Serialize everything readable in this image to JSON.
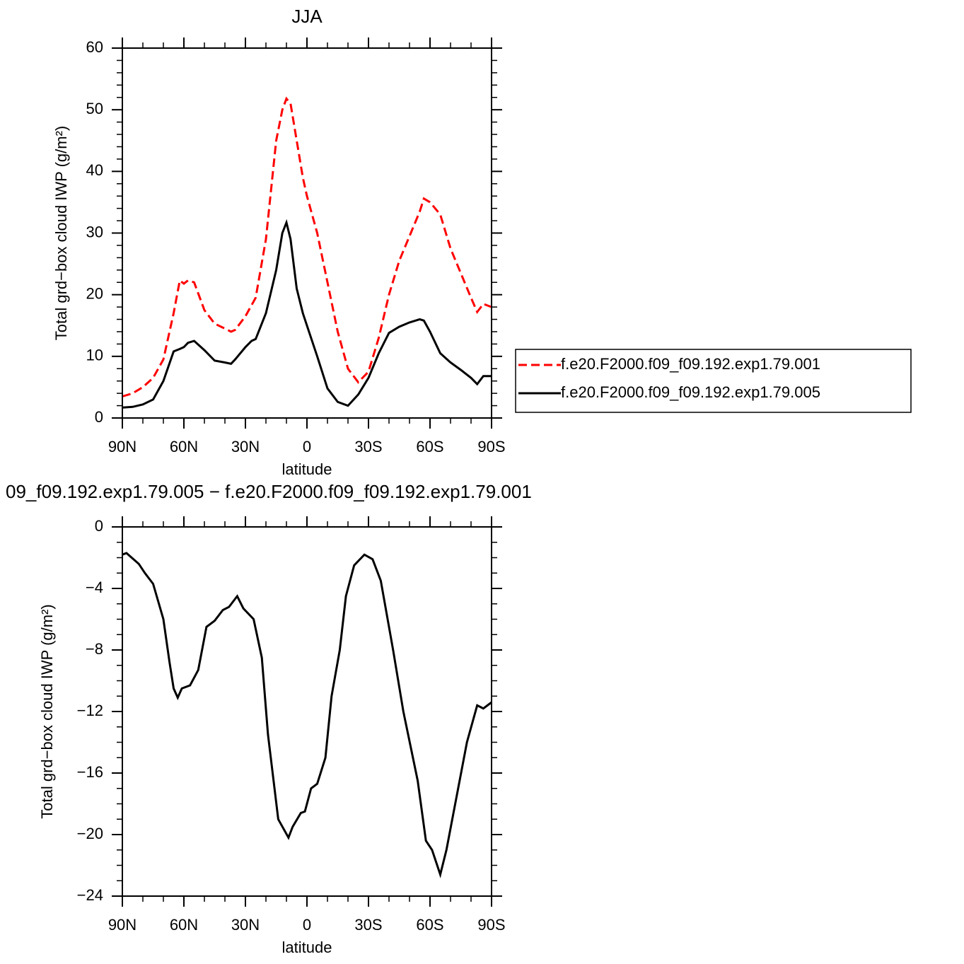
{
  "chart_data": [
    {
      "type": "line",
      "title": "JJA",
      "xlabel": "latitude",
      "ylabel": "Total grd−box cloud IWP (g/m²)",
      "x": [
        90,
        85,
        80,
        75,
        70,
        65,
        62,
        60,
        58,
        55,
        50,
        45,
        40,
        37,
        35,
        30,
        27,
        25,
        20,
        15,
        12,
        10,
        8,
        5,
        2,
        0,
        -5,
        -10,
        -15,
        -20,
        -25,
        -30,
        -35,
        -40,
        -45,
        -50,
        -55,
        -57,
        -60,
        -65,
        -70,
        -75,
        -80,
        -83,
        -86,
        -90
      ],
      "series": [
        {
          "name": "f.e20.F2000.f09_f09.192.exp1.79.001",
          "color": "#ff0000",
          "style": "dashed",
          "values": [
            3.5,
            4.0,
            5.0,
            6.5,
            9.5,
            17,
            22.3,
            21.8,
            22.3,
            22.0,
            17.5,
            15.3,
            14.5,
            14.0,
            14.3,
            16.5,
            18.3,
            19.5,
            29,
            45,
            50,
            51.8,
            51,
            45,
            39,
            36,
            30,
            22,
            14,
            8,
            5.8,
            7.5,
            13,
            20,
            25.5,
            29.5,
            33.5,
            35.6,
            35,
            33,
            27.5,
            23.5,
            19.5,
            17.2,
            18.5,
            18
          ]
        },
        {
          "name": "f.e20.F2000.f09_f09.192.exp1.79.005",
          "color": "#000000",
          "style": "solid",
          "values": [
            1.7,
            1.8,
            2.2,
            3.0,
            6,
            10.8,
            11.2,
            11.5,
            12.2,
            12.5,
            11,
            9.3,
            9.0,
            8.8,
            9.5,
            11.5,
            12.5,
            12.8,
            17,
            24,
            30,
            31.7,
            29,
            21,
            17,
            15,
            10,
            4.8,
            2.6,
            2.0,
            3.8,
            6.5,
            10.5,
            13.8,
            14.8,
            15.5,
            16,
            15.8,
            14,
            10.5,
            9,
            7.8,
            6.5,
            5.5,
            6.8,
            6.8
          ]
        }
      ],
      "legend": "right",
      "xlim": [
        90,
        -90
      ],
      "xticks": [
        {
          "value": 90,
          "label": "90N"
        },
        {
          "value": 60,
          "label": "60N"
        },
        {
          "value": 30,
          "label": "30N"
        },
        0,
        {
          "value": -30,
          "label": "30S"
        },
        {
          "value": -60,
          "label": "60S"
        },
        {
          "value": -90,
          "label": "90S"
        }
      ],
      "xminor": [
        80,
        70,
        50,
        40,
        20,
        10,
        -10,
        -20,
        -40,
        -50,
        -70,
        -80
      ],
      "ylim": [
        0,
        60
      ],
      "yticks": [
        0,
        10,
        20,
        30,
        40,
        50,
        60
      ],
      "yminor": [
        2,
        4,
        6,
        8,
        12,
        14,
        16,
        18,
        22,
        24,
        26,
        28,
        32,
        34,
        36,
        38,
        42,
        44,
        46,
        48,
        52,
        54,
        56,
        58
      ]
    },
    {
      "type": "line",
      "title": "09_f09.192.exp1.79.005 − f.e20.F2000.f09_f09.192.exp1.79.001",
      "xlabel": "latitude",
      "ylabel": "Total grd−box cloud IWP (g/m²)",
      "x": [
        90,
        88,
        82,
        79,
        75,
        70,
        67,
        65,
        63,
        61,
        57,
        53,
        49,
        45,
        41,
        38,
        34,
        31,
        26,
        22,
        19,
        14,
        9,
        7,
        3,
        1,
        -2,
        -5,
        -9,
        -12,
        -16,
        -19,
        -23,
        -28,
        -32,
        -36,
        -42,
        -47,
        -54,
        -58,
        -61,
        -65,
        -68,
        -73,
        -78,
        -83,
        -86,
        -90
      ],
      "series": [
        {
          "color": "#000000",
          "style": "solid",
          "values": [
            -1.8,
            -1.7,
            -2.4,
            -3.0,
            -3.7,
            -6,
            -8.8,
            -10.5,
            -11.1,
            -10.5,
            -10.3,
            -9.3,
            -6.5,
            -6.1,
            -5.4,
            -5.2,
            -4.5,
            -5.3,
            -6,
            -8.5,
            -13.5,
            -19,
            -20.2,
            -19.5,
            -18.6,
            -18.5,
            -17,
            -16.7,
            -15,
            -11,
            -8,
            -4.5,
            -2.5,
            -1.8,
            -2.1,
            -3.5,
            -8,
            -12,
            -16.5,
            -20.4,
            -21,
            -22.6,
            -21,
            -17.5,
            -14,
            -11.6,
            -11.8,
            -11.4
          ]
        }
      ],
      "xlim": [
        90,
        -90
      ],
      "xticks": [
        {
          "value": 90,
          "label": "90N"
        },
        {
          "value": 60,
          "label": "60N"
        },
        {
          "value": 30,
          "label": "30N"
        },
        0,
        {
          "value": -30,
          "label": "30S"
        },
        {
          "value": -60,
          "label": "60S"
        },
        {
          "value": -90,
          "label": "90S"
        }
      ],
      "xminor": [
        80,
        70,
        50,
        40,
        20,
        10,
        -10,
        -20,
        -40,
        -50,
        -70,
        -80
      ],
      "ylim": [
        -24,
        0
      ],
      "yticks": [
        0,
        {
          "value": -4,
          "label": "−4"
        },
        {
          "value": -8,
          "label": "−8"
        },
        {
          "value": -12,
          "label": "−12"
        },
        {
          "value": -16,
          "label": "−16"
        },
        {
          "value": -20,
          "label": "−20"
        },
        {
          "value": -24,
          "label": "−24"
        }
      ],
      "yminor": [
        -1,
        -2,
        -3,
        -5,
        -6,
        -7,
        -9,
        -10,
        -11,
        -13,
        -14,
        -15,
        -17,
        -18,
        -19,
        -21,
        -22,
        -23
      ]
    }
  ]
}
